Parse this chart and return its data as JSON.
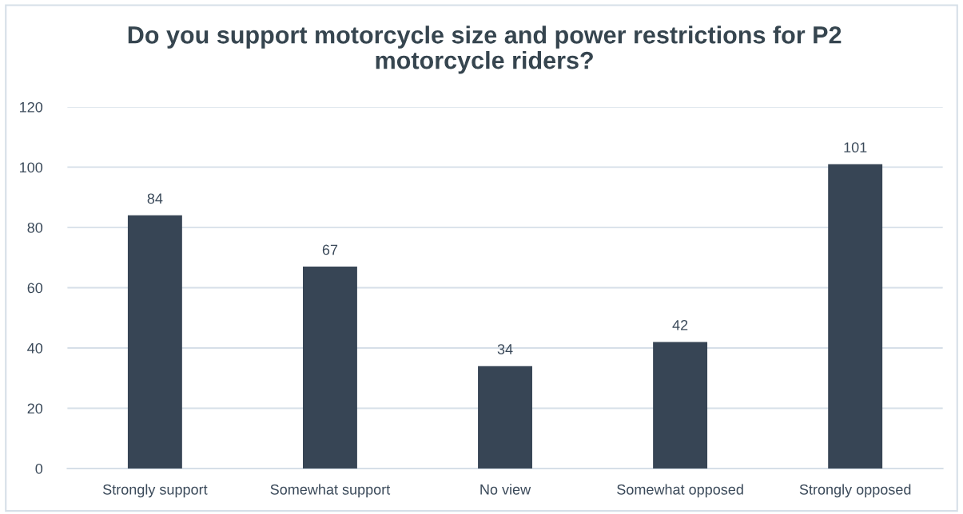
{
  "chart_data": {
    "type": "bar",
    "title": "Do you support motorcycle size and power restrictions for P2\nmotorcycle riders?",
    "categories": [
      "Strongly support",
      "Somewhat support",
      "No view",
      "Somewhat opposed",
      "Strongly opposed"
    ],
    "values": [
      84,
      67,
      34,
      42,
      101
    ],
    "color": "#374555",
    "ylim": [
      0,
      120
    ],
    "yticks": [
      0,
      20,
      40,
      60,
      80,
      100,
      120
    ],
    "grid": "y",
    "data_labels": true
  }
}
